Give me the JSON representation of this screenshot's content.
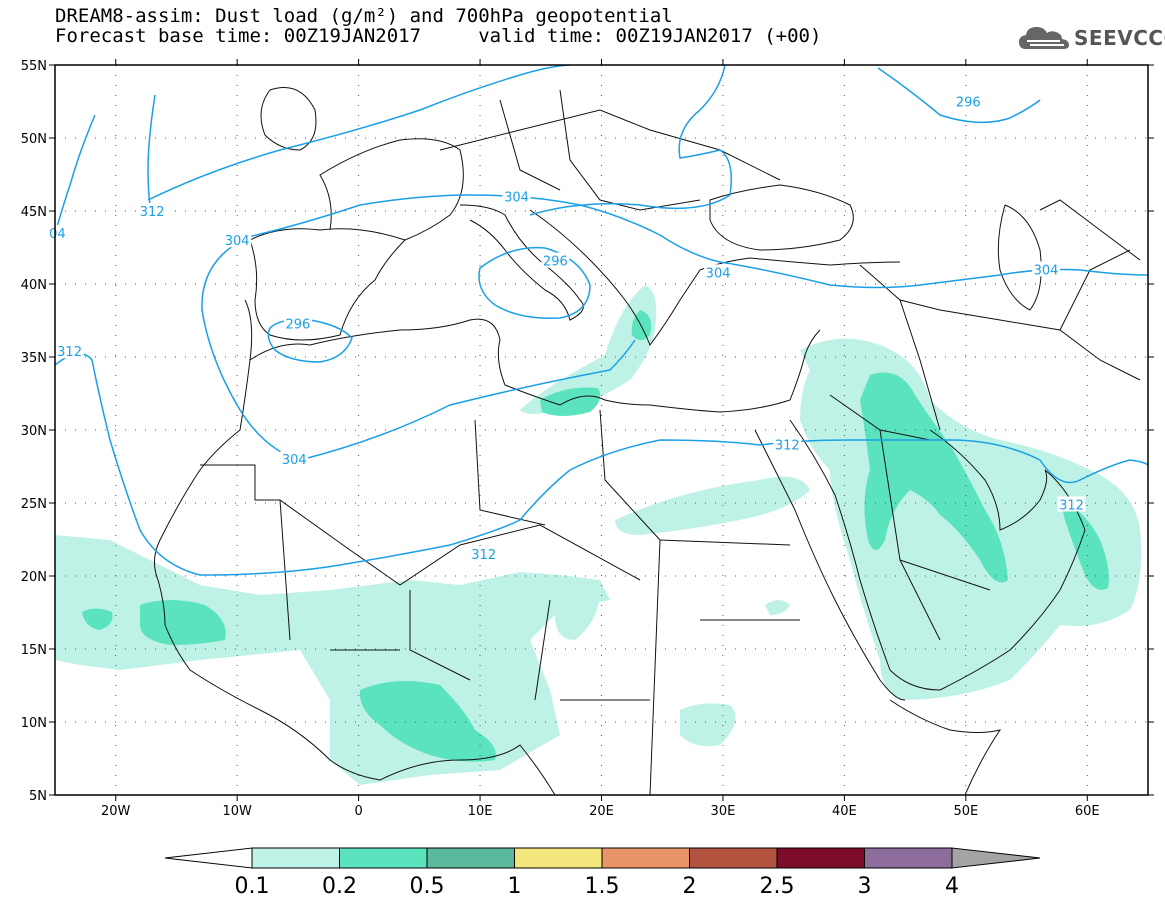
{
  "header": {
    "title_line1": "DREAM8-assim: Dust load (g/m²) and 700hPa geopotential",
    "title_line2": "Forecast base time: 00Z19JAN2017     valid time: 00Z19JAN2017 (+00)"
  },
  "logo": {
    "text": "SEEVCCC",
    "icon": "cloud-logo-icon"
  },
  "map": {
    "lon_range": [
      -25,
      65
    ],
    "lat_range": [
      5,
      55
    ],
    "lat_ticks": [
      {
        "value": 55,
        "label": "55N"
      },
      {
        "value": 50,
        "label": "50N"
      },
      {
        "value": 45,
        "label": "45N"
      },
      {
        "value": 40,
        "label": "40N"
      },
      {
        "value": 35,
        "label": "35N"
      },
      {
        "value": 30,
        "label": "30N"
      },
      {
        "value": 25,
        "label": "25N"
      },
      {
        "value": 20,
        "label": "20N"
      },
      {
        "value": 15,
        "label": "15N"
      },
      {
        "value": 10,
        "label": "10N"
      },
      {
        "value": 5,
        "label": "5N"
      }
    ],
    "lon_ticks": [
      {
        "value": -20,
        "label": "20W"
      },
      {
        "value": -10,
        "label": "10W"
      },
      {
        "value": 0,
        "label": "0"
      },
      {
        "value": 10,
        "label": "10E"
      },
      {
        "value": 20,
        "label": "20E"
      },
      {
        "value": 30,
        "label": "30E"
      },
      {
        "value": 40,
        "label": "40E"
      },
      {
        "value": 50,
        "label": "50E"
      },
      {
        "value": 60,
        "label": "60E"
      }
    ],
    "contour_color": "#1aa0e6",
    "contour_labels": [
      {
        "text": "312",
        "lon": -17,
        "lat": 45
      },
      {
        "text": "312",
        "lon": -23.8,
        "lat": 35.4
      },
      {
        "text": "304",
        "lon": -10,
        "lat": 43
      },
      {
        "text": "296",
        "lon": -5,
        "lat": 37.3
      },
      {
        "text": "304",
        "lon": -5.3,
        "lat": 28
      },
      {
        "text": "304",
        "lon": 13,
        "lat": 46
      },
      {
        "text": "296",
        "lon": 16.2,
        "lat": 41.6
      },
      {
        "text": "304",
        "lon": 29.6,
        "lat": 40.8
      },
      {
        "text": "312",
        "lon": 10.3,
        "lat": 21.5
      },
      {
        "text": "312",
        "lon": 35.3,
        "lat": 29
      },
      {
        "text": "296",
        "lon": 50.2,
        "lat": 52.5
      },
      {
        "text": "304",
        "lon": 56.6,
        "lat": 41
      },
      {
        "text": "312",
        "lon": 58.7,
        "lat": 24.9
      },
      {
        "text": "04",
        "lon": -24.8,
        "lat": 43.5
      }
    ]
  },
  "colorbar": {
    "colors": [
      "#bff2e6",
      "#5be3bd",
      "#5ab99c",
      "#f3e67d",
      "#e89466",
      "#b2533f",
      "#7c0c2a",
      "#8e6c9b"
    ],
    "labels": [
      "0.1",
      "0.2",
      "0.5",
      "1",
      "1.5",
      "2",
      "2.5",
      "3",
      "4"
    ],
    "arrow_left_color": "#ffffff",
    "arrow_right_color": "#a4a4a4"
  }
}
